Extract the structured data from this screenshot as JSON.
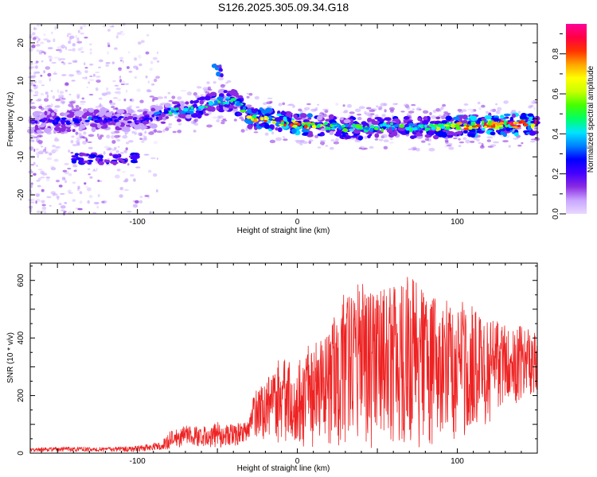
{
  "page_title": "S126.2025.305.09.34.G18",
  "chart_data": [
    {
      "type": "heatmap",
      "title": "S126.2025.305.09.34.G18",
      "xlabel": "Height of straight line (km)",
      "ylabel": "Frequency (Hz)",
      "xlim": [
        -167,
        150
      ],
      "ylim": [
        -25,
        25
      ],
      "x_ticks": [
        -100,
        0,
        100
      ],
      "x_tick_labels": [
        "-100",
        "0",
        "100"
      ],
      "y_ticks": [
        -20,
        -10,
        0,
        10,
        20
      ],
      "y_tick_labels": [
        "-20",
        "-10",
        "0",
        "10",
        "20"
      ],
      "colorbar": {
        "label": "Normalized spectral amplitude",
        "range": [
          0.0,
          0.95
        ],
        "ticks": [
          0.0,
          0.2,
          0.4,
          0.6,
          0.8
        ],
        "tick_labels": [
          "0.0",
          "0.2",
          "0.4",
          "0.6",
          "0.8"
        ],
        "colors": [
          "#e8d8ff",
          "#c9a6ff",
          "#8a2be2",
          "#4400ff",
          "#0000ff",
          "#0080ff",
          "#00e5ff",
          "#00ff66",
          "#44ff00",
          "#c8ff00",
          "#ffff00",
          "#ffa500",
          "#ff3300",
          "#ff0044",
          "#ff0099"
        ]
      },
      "ridge_trace": {
        "height_km": [
          -165,
          -140,
          -120,
          -100,
          -90,
          -80,
          -70,
          -60,
          -50,
          -40,
          -35,
          -30,
          -20,
          -10,
          0,
          20,
          40,
          60,
          80,
          100,
          120,
          140,
          148
        ],
        "frequency_hz": [
          -1,
          -0.5,
          0,
          -0.5,
          0.5,
          2,
          2,
          3,
          4.5,
          5,
          3,
          0.5,
          0,
          -0.8,
          -1.5,
          -2,
          -2.5,
          -2,
          -2.5,
          -2,
          -1.5,
          -1.5,
          -1.5
        ],
        "amplitude": [
          0.25,
          0.3,
          0.3,
          0.25,
          0.3,
          0.45,
          0.45,
          0.5,
          0.5,
          0.5,
          0.55,
          0.7,
          0.85,
          0.8,
          0.85,
          0.6,
          0.55,
          0.55,
          0.5,
          0.75,
          0.9,
          0.95,
          0.9
        ]
      },
      "features": [
        {
          "name": "secondary band",
          "height_km": [
            -140,
            -100
          ],
          "frequency_hz": -10.5,
          "amplitude": 0.25
        },
        {
          "name": "isolated blob",
          "height_km": -50,
          "frequency_hz": 13,
          "amplitude": 0.35
        }
      ]
    },
    {
      "type": "line",
      "xlabel": "Height of straight line (km)",
      "ylabel": "SNR (10 * v/v)",
      "xlim": [
        -167,
        150
      ],
      "ylim": [
        0,
        660
      ],
      "x_ticks": [
        -100,
        0,
        100
      ],
      "x_tick_labels": [
        "-100",
        "0",
        "100"
      ],
      "y_ticks": [
        0,
        200,
        400,
        600
      ],
      "y_tick_labels": [
        "0",
        "200",
        "400",
        "600"
      ],
      "series": [
        {
          "name": "SNR",
          "color": "#ee2222",
          "x": [
            -165,
            -150,
            -140,
            -120,
            -100,
            -85,
            -80,
            -70,
            -60,
            -50,
            -40,
            -30,
            -27,
            -20,
            -10,
            0,
            10,
            20,
            25,
            30,
            40,
            50,
            60,
            70,
            80,
            90,
            100,
            110,
            120,
            130,
            140,
            150
          ],
          "lower": [
            5,
            5,
            5,
            5,
            5,
            10,
            15,
            20,
            20,
            20,
            20,
            40,
            60,
            40,
            30,
            25,
            20,
            20,
            20,
            20,
            15,
            15,
            15,
            15,
            15,
            20,
            30,
            60,
            100,
            150,
            170,
            190
          ],
          "upper": [
            18,
            22,
            22,
            20,
            25,
            40,
            75,
            95,
            90,
            105,
            100,
            115,
            210,
            250,
            330,
            300,
            390,
            410,
            520,
            530,
            590,
            575,
            580,
            600,
            565,
            540,
            510,
            510,
            470,
            450,
            440,
            420
          ]
        }
      ]
    }
  ]
}
